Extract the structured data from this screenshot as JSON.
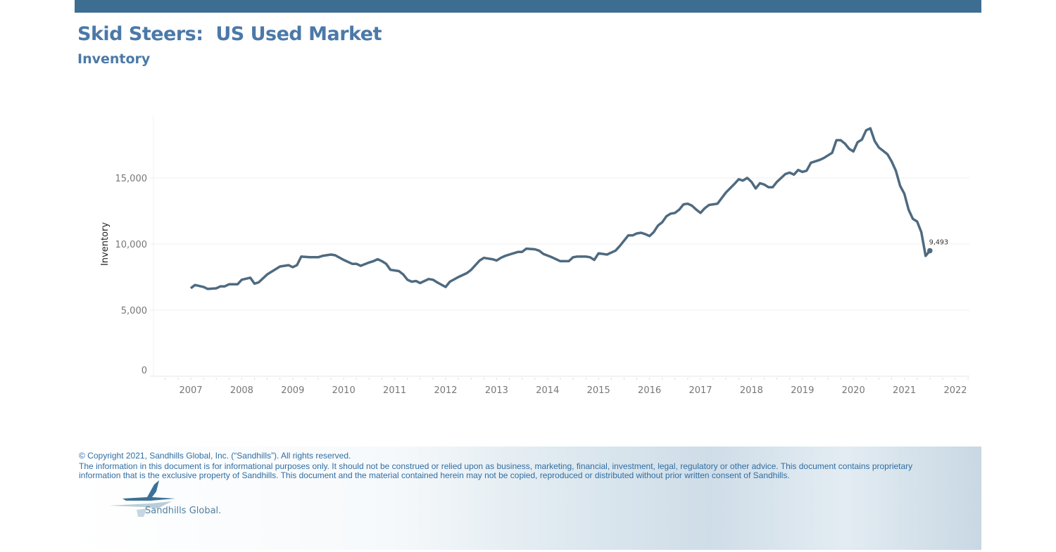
{
  "header": {
    "title": "Skid Steers:  US Used Market",
    "subtitle": "Inventory"
  },
  "colors": {
    "top_bar": "#3d6e91",
    "title": "#4b79a8",
    "line": "#4e6a80",
    "footer_text": "#2f6ea3"
  },
  "chart_data": {
    "type": "line",
    "title": "",
    "xlabel": "",
    "ylabel": "Inventory",
    "ylim": [
      0,
      19500
    ],
    "xlim": [
      "2006-06",
      "2022-03"
    ],
    "grid": true,
    "y_ticks": [
      "0",
      "5,000",
      "10,000",
      "15,000"
    ],
    "y_tick_values": [
      0,
      5000,
      10000,
      15000
    ],
    "x_ticks": [
      "2007",
      "2008",
      "2009",
      "2010",
      "2011",
      "2012",
      "2013",
      "2014",
      "2015",
      "2016",
      "2017",
      "2018",
      "2019",
      "2020",
      "2021",
      "2022"
    ],
    "last_point_label": "9,493",
    "series": [
      {
        "points": [
          [
            "2007-01",
            6660
          ],
          [
            "2007-02",
            6900
          ],
          [
            "2007-04",
            6750
          ],
          [
            "2007-05",
            6600
          ],
          [
            "2007-07",
            6650
          ],
          [
            "2007-08",
            6800
          ],
          [
            "2007-09",
            6800
          ],
          [
            "2007-10",
            6950
          ],
          [
            "2007-12",
            6950
          ],
          [
            "2008-01",
            7300
          ],
          [
            "2008-03",
            7450
          ],
          [
            "2008-04",
            7000
          ],
          [
            "2008-05",
            7100
          ],
          [
            "2008-07",
            7700
          ],
          [
            "2008-10",
            8300
          ],
          [
            "2008-12",
            8400
          ],
          [
            "2009-01",
            8250
          ],
          [
            "2009-02",
            8400
          ],
          [
            "2009-03",
            9050
          ],
          [
            "2009-05",
            9000
          ],
          [
            "2009-07",
            9000
          ],
          [
            "2009-08",
            9100
          ],
          [
            "2009-10",
            9200
          ],
          [
            "2009-11",
            9150
          ],
          [
            "2010-01",
            8800
          ],
          [
            "2010-03",
            8500
          ],
          [
            "2010-04",
            8500
          ],
          [
            "2010-05",
            8350
          ],
          [
            "2010-07",
            8600
          ],
          [
            "2010-08",
            8700
          ],
          [
            "2010-09",
            8850
          ],
          [
            "2010-10",
            8700
          ],
          [
            "2010-11",
            8500
          ],
          [
            "2010-12",
            8050
          ],
          [
            "2011-02",
            7950
          ],
          [
            "2011-03",
            7700
          ],
          [
            "2011-04",
            7300
          ],
          [
            "2011-05",
            7150
          ],
          [
            "2011-06",
            7200
          ],
          [
            "2011-07",
            7050
          ],
          [
            "2011-09",
            7350
          ],
          [
            "2011-10",
            7300
          ],
          [
            "2011-11",
            7100
          ],
          [
            "2012-01",
            6750
          ],
          [
            "2012-02",
            7150
          ],
          [
            "2012-04",
            7500
          ],
          [
            "2012-06",
            7800
          ],
          [
            "2012-07",
            8050
          ],
          [
            "2012-09",
            8750
          ],
          [
            "2012-10",
            8950
          ],
          [
            "2012-11",
            8900
          ],
          [
            "2012-12",
            8850
          ],
          [
            "2013-01",
            8750
          ],
          [
            "2013-02",
            8950
          ],
          [
            "2013-03",
            9100
          ],
          [
            "2013-04",
            9200
          ],
          [
            "2013-06",
            9400
          ],
          [
            "2013-07",
            9400
          ],
          [
            "2013-08",
            9650
          ],
          [
            "2013-10",
            9600
          ],
          [
            "2013-11",
            9500
          ],
          [
            "2013-12",
            9250
          ],
          [
            "2014-02",
            9000
          ],
          [
            "2014-03",
            8850
          ],
          [
            "2014-04",
            8700
          ],
          [
            "2014-06",
            8700
          ],
          [
            "2014-07",
            9000
          ],
          [
            "2014-08",
            9050
          ],
          [
            "2014-10",
            9050
          ],
          [
            "2014-11",
            9000
          ],
          [
            "2014-12",
            8800
          ],
          [
            "2015-01",
            9300
          ],
          [
            "2015-03",
            9200
          ],
          [
            "2015-04",
            9350
          ],
          [
            "2015-05",
            9500
          ],
          [
            "2015-06",
            9850
          ],
          [
            "2015-08",
            10650
          ],
          [
            "2015-09",
            10650
          ],
          [
            "2015-10",
            10800
          ],
          [
            "2015-11",
            10850
          ],
          [
            "2015-12",
            10750
          ],
          [
            "2016-01",
            10600
          ],
          [
            "2016-02",
            10900
          ],
          [
            "2016-03",
            11400
          ],
          [
            "2016-04",
            11650
          ],
          [
            "2016-05",
            12100
          ],
          [
            "2016-06",
            12300
          ],
          [
            "2016-07",
            12350
          ],
          [
            "2016-08",
            12600
          ],
          [
            "2016-09",
            13000
          ],
          [
            "2016-10",
            13050
          ],
          [
            "2016-11",
            12900
          ],
          [
            "2016-12",
            12600
          ],
          [
            "2017-01",
            12350
          ],
          [
            "2017-02",
            12700
          ],
          [
            "2017-03",
            12950
          ],
          [
            "2017-05",
            13050
          ],
          [
            "2017-07",
            13900
          ],
          [
            "2017-09",
            14550
          ],
          [
            "2017-10",
            14900
          ],
          [
            "2017-11",
            14800
          ],
          [
            "2017-12",
            15000
          ],
          [
            "2018-01",
            14700
          ],
          [
            "2018-02",
            14200
          ],
          [
            "2018-03",
            14600
          ],
          [
            "2018-04",
            14500
          ],
          [
            "2018-05",
            14300
          ],
          [
            "2018-06",
            14300
          ],
          [
            "2018-07",
            14700
          ],
          [
            "2018-09",
            15300
          ],
          [
            "2018-10",
            15400
          ],
          [
            "2018-11",
            15250
          ],
          [
            "2018-12",
            15600
          ],
          [
            "2019-01",
            15450
          ],
          [
            "2019-02",
            15550
          ],
          [
            "2019-03",
            16150
          ],
          [
            "2019-05",
            16350
          ],
          [
            "2019-06",
            16500
          ],
          [
            "2019-08",
            16900
          ],
          [
            "2019-09",
            17850
          ],
          [
            "2019-10",
            17850
          ],
          [
            "2019-11",
            17600
          ],
          [
            "2019-12",
            17200
          ],
          [
            "2020-01",
            17000
          ],
          [
            "2020-02",
            17700
          ],
          [
            "2020-03",
            17900
          ],
          [
            "2020-04",
            18600
          ],
          [
            "2020-05",
            18750
          ],
          [
            "2020-06",
            17800
          ],
          [
            "2020-07",
            17300
          ],
          [
            "2020-09",
            16800
          ],
          [
            "2020-10",
            16250
          ],
          [
            "2020-11",
            15550
          ],
          [
            "2020-12",
            14400
          ],
          [
            "2021-01",
            13800
          ],
          [
            "2021-02",
            12600
          ],
          [
            "2021-03",
            11900
          ],
          [
            "2021-04",
            11700
          ],
          [
            "2021-05",
            10900
          ],
          [
            "2021-06",
            9100
          ],
          [
            "2021-07",
            9493
          ]
        ]
      }
    ]
  },
  "footer": {
    "copyright": "© Copyright 2021, Sandhills Global, Inc. (“Sandhills”). All rights reserved.",
    "disclaimer_line1": "The information in this document is for informational purposes only.  It should not be construed or relied upon as business, marketing, financial, investment, legal, regulatory or other advice. This document contains proprietary",
    "disclaimer_line2": "information that is the exclusive property of Sandhills. This document and the material contained herein may not be copied, reproduced or distributed without prior written consent of Sandhills.",
    "logo_text": "Sandhills Global."
  }
}
